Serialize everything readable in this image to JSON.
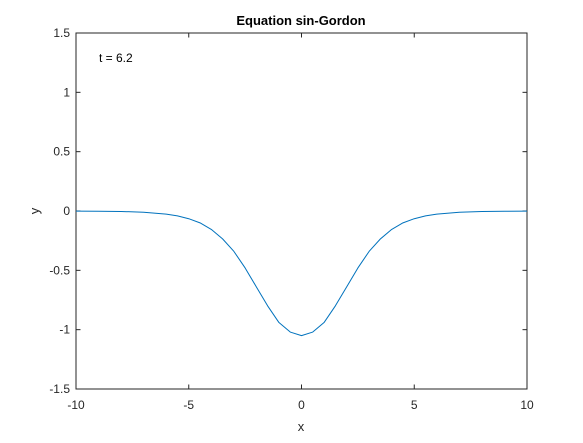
{
  "chart_data": {
    "type": "line",
    "title": "Equation sin-Gordon",
    "xlabel": "x",
    "ylabel": "y",
    "xlim": [
      -10,
      10
    ],
    "ylim": [
      -1.5,
      1.5
    ],
    "xticks": [
      -10,
      -5,
      0,
      5,
      10
    ],
    "xtick_labels": [
      "-10",
      "-5",
      "0",
      "5",
      "10"
    ],
    "yticks": [
      -1.5,
      -1,
      -0.5,
      0,
      0.5,
      1,
      1.5
    ],
    "ytick_labels": [
      "-1.5",
      "-1",
      "-0.5",
      "0",
      "0.5",
      "1",
      "1.5"
    ],
    "grid": false,
    "annotation": "t = 6.2",
    "series": [
      {
        "color": "#0072bd",
        "x": [
          -10,
          -9,
          -8,
          -7,
          -6,
          -5.5,
          -5,
          -4.5,
          -4,
          -3.5,
          -3,
          -2.5,
          -2,
          -1.5,
          -1,
          -0.5,
          0,
          0.5,
          1,
          1.5,
          2,
          2.5,
          3,
          3.5,
          4,
          4.5,
          5,
          5.5,
          6,
          7,
          8,
          9,
          10
        ],
        "y": [
          -0.001,
          -0.002,
          -0.004,
          -0.01,
          -0.026,
          -0.041,
          -0.065,
          -0.1,
          -0.155,
          -0.235,
          -0.34,
          -0.48,
          -0.64,
          -0.8,
          -0.94,
          -1.02,
          -1.05,
          -1.02,
          -0.94,
          -0.8,
          -0.64,
          -0.48,
          -0.34,
          -0.235,
          -0.155,
          -0.1,
          -0.065,
          -0.041,
          -0.026,
          -0.01,
          -0.004,
          -0.002,
          -0.001
        ]
      }
    ]
  }
}
